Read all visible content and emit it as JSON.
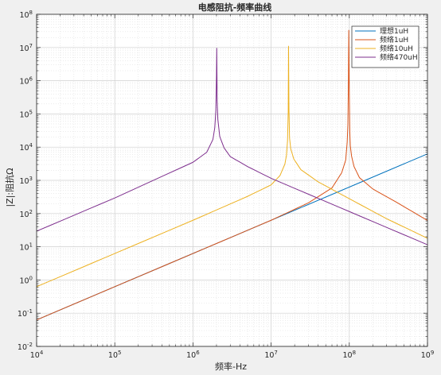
{
  "chart_data": {
    "type": "line",
    "title": "电感阻抗-频率曲线",
    "xlabel": "频率-Hz",
    "ylabel": "|Z|:阻抗Ω",
    "xscale": "log",
    "yscale": "log",
    "xlim": [
      10000,
      1000000000
    ],
    "ylim": [
      0.01,
      100000000
    ],
    "grid": true,
    "minor_grid": true,
    "legend_position": "top-right",
    "x_tick_labels": [
      {
        "value": 10000,
        "base": "10",
        "exp": "4"
      },
      {
        "value": 100000,
        "base": "10",
        "exp": "5"
      },
      {
        "value": 1000000,
        "base": "10",
        "exp": "6"
      },
      {
        "value": 10000000,
        "base": "10",
        "exp": "7"
      },
      {
        "value": 100000000,
        "base": "10",
        "exp": "8"
      },
      {
        "value": 1000000000,
        "base": "10",
        "exp": "9"
      }
    ],
    "y_tick_labels": [
      {
        "value": 0.01,
        "base": "10",
        "exp": "-2"
      },
      {
        "value": 0.1,
        "base": "10",
        "exp": "-1"
      },
      {
        "value": 1,
        "base": "10",
        "exp": "0"
      },
      {
        "value": 10,
        "base": "10",
        "exp": "1"
      },
      {
        "value": 100,
        "base": "10",
        "exp": "2"
      },
      {
        "value": 1000,
        "base": "10",
        "exp": "3"
      },
      {
        "value": 10000,
        "base": "10",
        "exp": "4"
      },
      {
        "value": 100000,
        "base": "10",
        "exp": "5"
      },
      {
        "value": 1000000,
        "base": "10",
        "exp": "6"
      },
      {
        "value": 10000000,
        "base": "10",
        "exp": "7"
      },
      {
        "value": 100000000,
        "base": "10",
        "exp": "8"
      }
    ],
    "series": [
      {
        "name": "理想1uH",
        "color": "#0072BD",
        "x": [
          10000,
          1000000000
        ],
        "y": [
          0.0628,
          6280
        ]
      },
      {
        "name": "频络1uH",
        "color": "#D95319",
        "x": [
          10000,
          1000000,
          10000000,
          30000000,
          60000000,
          80000000,
          90000000,
          94000000,
          96000000,
          97500000,
          98500000,
          100000000,
          101500000,
          103000000,
          107000000,
          115000000,
          135000000,
          200000000,
          400000000,
          1000000000
        ],
        "y": [
          0.0628,
          6.28,
          62.8,
          210,
          590,
          1700,
          4100,
          14000,
          50000,
          1000000,
          33000000,
          500000,
          30000,
          11000,
          5300,
          2600,
          1200,
          550,
          220,
          62
        ]
      },
      {
        "name": "频络10uH",
        "color": "#EDB120",
        "x": [
          10000,
          1000000,
          5000000,
          10000000,
          13000000,
          15000000,
          15700000,
          16200000,
          16550000,
          16700000,
          16900000,
          17200000,
          17800000,
          19500000,
          24000000,
          40000000,
          100000000,
          300000000,
          1000000000
        ],
        "y": [
          0.628,
          62.8,
          330,
          730,
          1400,
          3100,
          5600,
          15000,
          120000,
          11000000,
          150000,
          19000,
          9000,
          4400,
          2100,
          900,
          280,
          70,
          18
        ]
      },
      {
        "name": "频络470uH",
        "color": "#7E2F8E",
        "x": [
          10000,
          100000,
          1000000,
          1500000,
          1800000,
          1900000,
          1960000,
          2000000,
          2015000,
          2040000,
          2080000,
          2200000,
          2500000,
          3000000,
          5000000,
          10000000,
          100000000,
          1000000000
        ],
        "y": [
          29.5,
          295,
          3500,
          7000,
          17000,
          38000,
          120000,
          1500000,
          9500000,
          250000,
          70000,
          21000,
          9500,
          5200,
          2600,
          1150,
          115,
          11.5
        ]
      }
    ]
  }
}
